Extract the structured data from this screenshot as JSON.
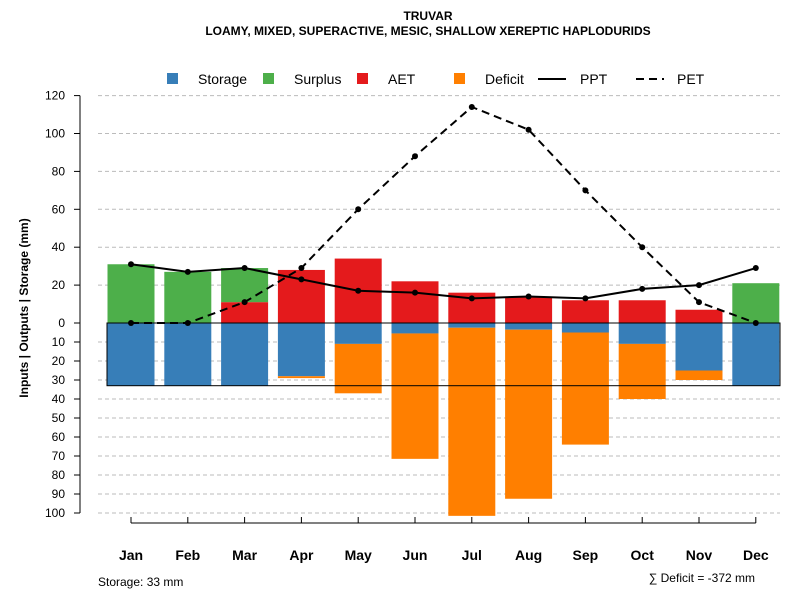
{
  "chart_data": {
    "type": "bar",
    "title": "TRUVAR",
    "subtitle": "LOAMY, MIXED, SUPERACTIVE, MESIC, SHALLOW XEREPTIC HAPLODURIDS",
    "ylabel": "Inputs | Outputs | Storage    (mm)",
    "categories": [
      "Jan",
      "Feb",
      "Mar",
      "Apr",
      "May",
      "Jun",
      "Jul",
      "Aug",
      "Sep",
      "Oct",
      "Nov",
      "Dec"
    ],
    "upper_ylim": [
      0,
      120
    ],
    "upper_ticks": [
      "0",
      "20",
      "40",
      "60",
      "80",
      "100",
      "120"
    ],
    "lower_ylim": [
      0,
      100
    ],
    "lower_ticks": [
      "10",
      "20",
      "30",
      "40",
      "50",
      "60",
      "70",
      "80",
      "90",
      "100"
    ],
    "series": [
      {
        "name": "Storage",
        "color": "#377EB8",
        "position": "below",
        "values": [
          33,
          33,
          33,
          28,
          11,
          5.5,
          2.5,
          3.5,
          5,
          11,
          25,
          33
        ]
      },
      {
        "name": "Surplus",
        "color": "#4DAF4A",
        "position": "above",
        "values": [
          31,
          27,
          18,
          0,
          0,
          0,
          0,
          0,
          0,
          0,
          0,
          21
        ]
      },
      {
        "name": "AET",
        "color": "#E41A1C",
        "position": "above",
        "values": [
          0,
          0,
          11,
          28,
          34,
          22,
          16,
          14,
          12,
          12,
          7,
          0
        ]
      },
      {
        "name": "Deficit",
        "color": "#FF7F00",
        "position": "below",
        "values": [
          0,
          0,
          0,
          1,
          26,
          66,
          99,
          89,
          59,
          29,
          5,
          0
        ]
      },
      {
        "name": "PPT",
        "style": "solid",
        "values": [
          31,
          27,
          29,
          23,
          17,
          16,
          13,
          14,
          13,
          18,
          20,
          29
        ]
      },
      {
        "name": "PET",
        "style": "dashed",
        "values": [
          0,
          0,
          11,
          29,
          60,
          88,
          114,
          102,
          70,
          40,
          11,
          0
        ]
      }
    ],
    "legend_position": "top",
    "grid": true,
    "storage_note": "Storage: 33 mm",
    "deficit_note": "∑ Deficit = -372 mm"
  }
}
